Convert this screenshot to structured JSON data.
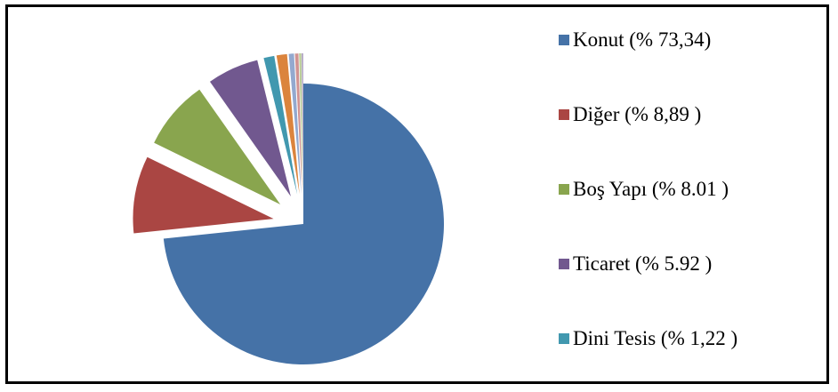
{
  "chart_data": {
    "type": "pie",
    "exploded": true,
    "categories": [
      "Konut",
      "Diğer",
      "Boş Yapı",
      "Ticaret",
      "Dini Tesis",
      "",
      "",
      "",
      "",
      ""
    ],
    "values": [
      73.34,
      8.89,
      8.01,
      5.92,
      1.22,
      1.2,
      0.6,
      0.4,
      0.25,
      0.17
    ],
    "colors": [
      "#4572A7",
      "#AA4643",
      "#89A54E",
      "#71588F",
      "#4198AF",
      "#DB843D",
      "#93A9CF",
      "#D19392",
      "#B9CD96",
      "#A99BBD"
    ],
    "legend": [
      {
        "label": "Konut (% 73,34)",
        "color": "#4572A7"
      },
      {
        "label": "Diğer (% 8,89 )",
        "color": "#AA4643"
      },
      {
        "label": "Boş Yapı (% 8.01 )",
        "color": "#89A54E"
      },
      {
        "label": "Ticaret (% 5.92 )",
        "color": "#71588F"
      },
      {
        "label": "Dini Tesis (% 1,22 )",
        "color": "#4198AF"
      }
    ],
    "legend_position": "right"
  }
}
